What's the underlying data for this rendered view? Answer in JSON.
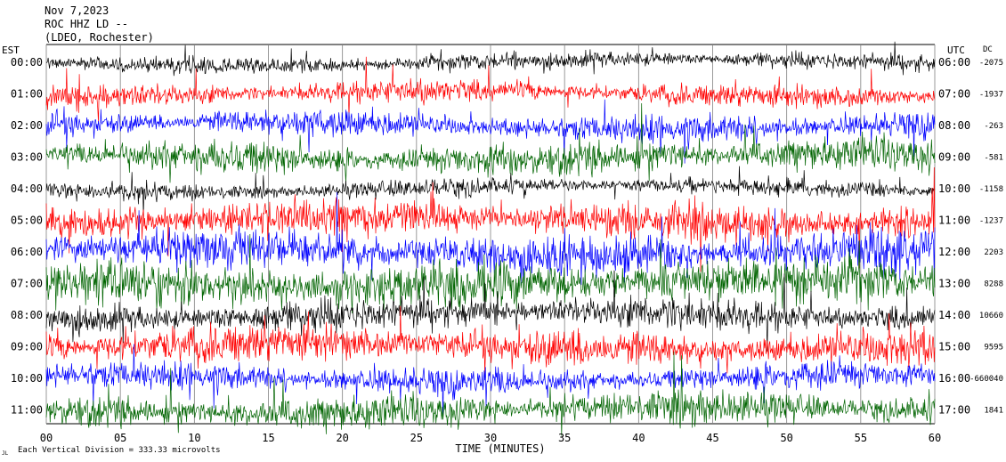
{
  "header": {
    "date": "Nov 7,2023",
    "station": "ROC HHZ LD --",
    "network": "(LDEO, Rochester)"
  },
  "footer": {
    "note": "Each Vertical Division = 333.33 microvolts",
    "corner_mark": "JL"
  },
  "chart_data": {
    "type": "line",
    "title": "",
    "xlabel": "TIME (MINUTES)",
    "ylabel_left": "EST",
    "ylabel_right": "UTC",
    "dc_label": "DC",
    "xlim": [
      0,
      60
    ],
    "x_ticks": [
      "00",
      "05",
      "10",
      "15",
      "20",
      "25",
      "30",
      "35",
      "40",
      "45",
      "50",
      "55",
      "60"
    ],
    "rows": [
      {
        "est": "00:00",
        "utc": "06:00",
        "dc": "-2075",
        "color": "#000000"
      },
      {
        "est": "01:00",
        "utc": "07:00",
        "dc": "-1937",
        "color": "#ff0000"
      },
      {
        "est": "02:00",
        "utc": "08:00",
        "dc": "-263",
        "color": "#0000ff"
      },
      {
        "est": "03:00",
        "utc": "09:00",
        "dc": "-581",
        "color": "#006400"
      },
      {
        "est": "04:00",
        "utc": "10:00",
        "dc": "-1158",
        "color": "#000000"
      },
      {
        "est": "05:00",
        "utc": "11:00",
        "dc": "-1237",
        "color": "#ff0000"
      },
      {
        "est": "06:00",
        "utc": "12:00",
        "dc": "2203",
        "color": "#0000ff"
      },
      {
        "est": "07:00",
        "utc": "13:00",
        "dc": "8288",
        "color": "#006400"
      },
      {
        "est": "08:00",
        "utc": "14:00",
        "dc": "10660",
        "color": "#000000"
      },
      {
        "est": "09:00",
        "utc": "15:00",
        "dc": "9595",
        "color": "#ff0000"
      },
      {
        "est": "10:00",
        "utc": "16:00",
        "dc": "-660040",
        "color": "#0000ff"
      },
      {
        "est": "11:00",
        "utc": "17:00",
        "dc": "1841",
        "color": "#006400"
      }
    ],
    "grid": true,
    "vertical_grid_every_minutes": 5
  }
}
